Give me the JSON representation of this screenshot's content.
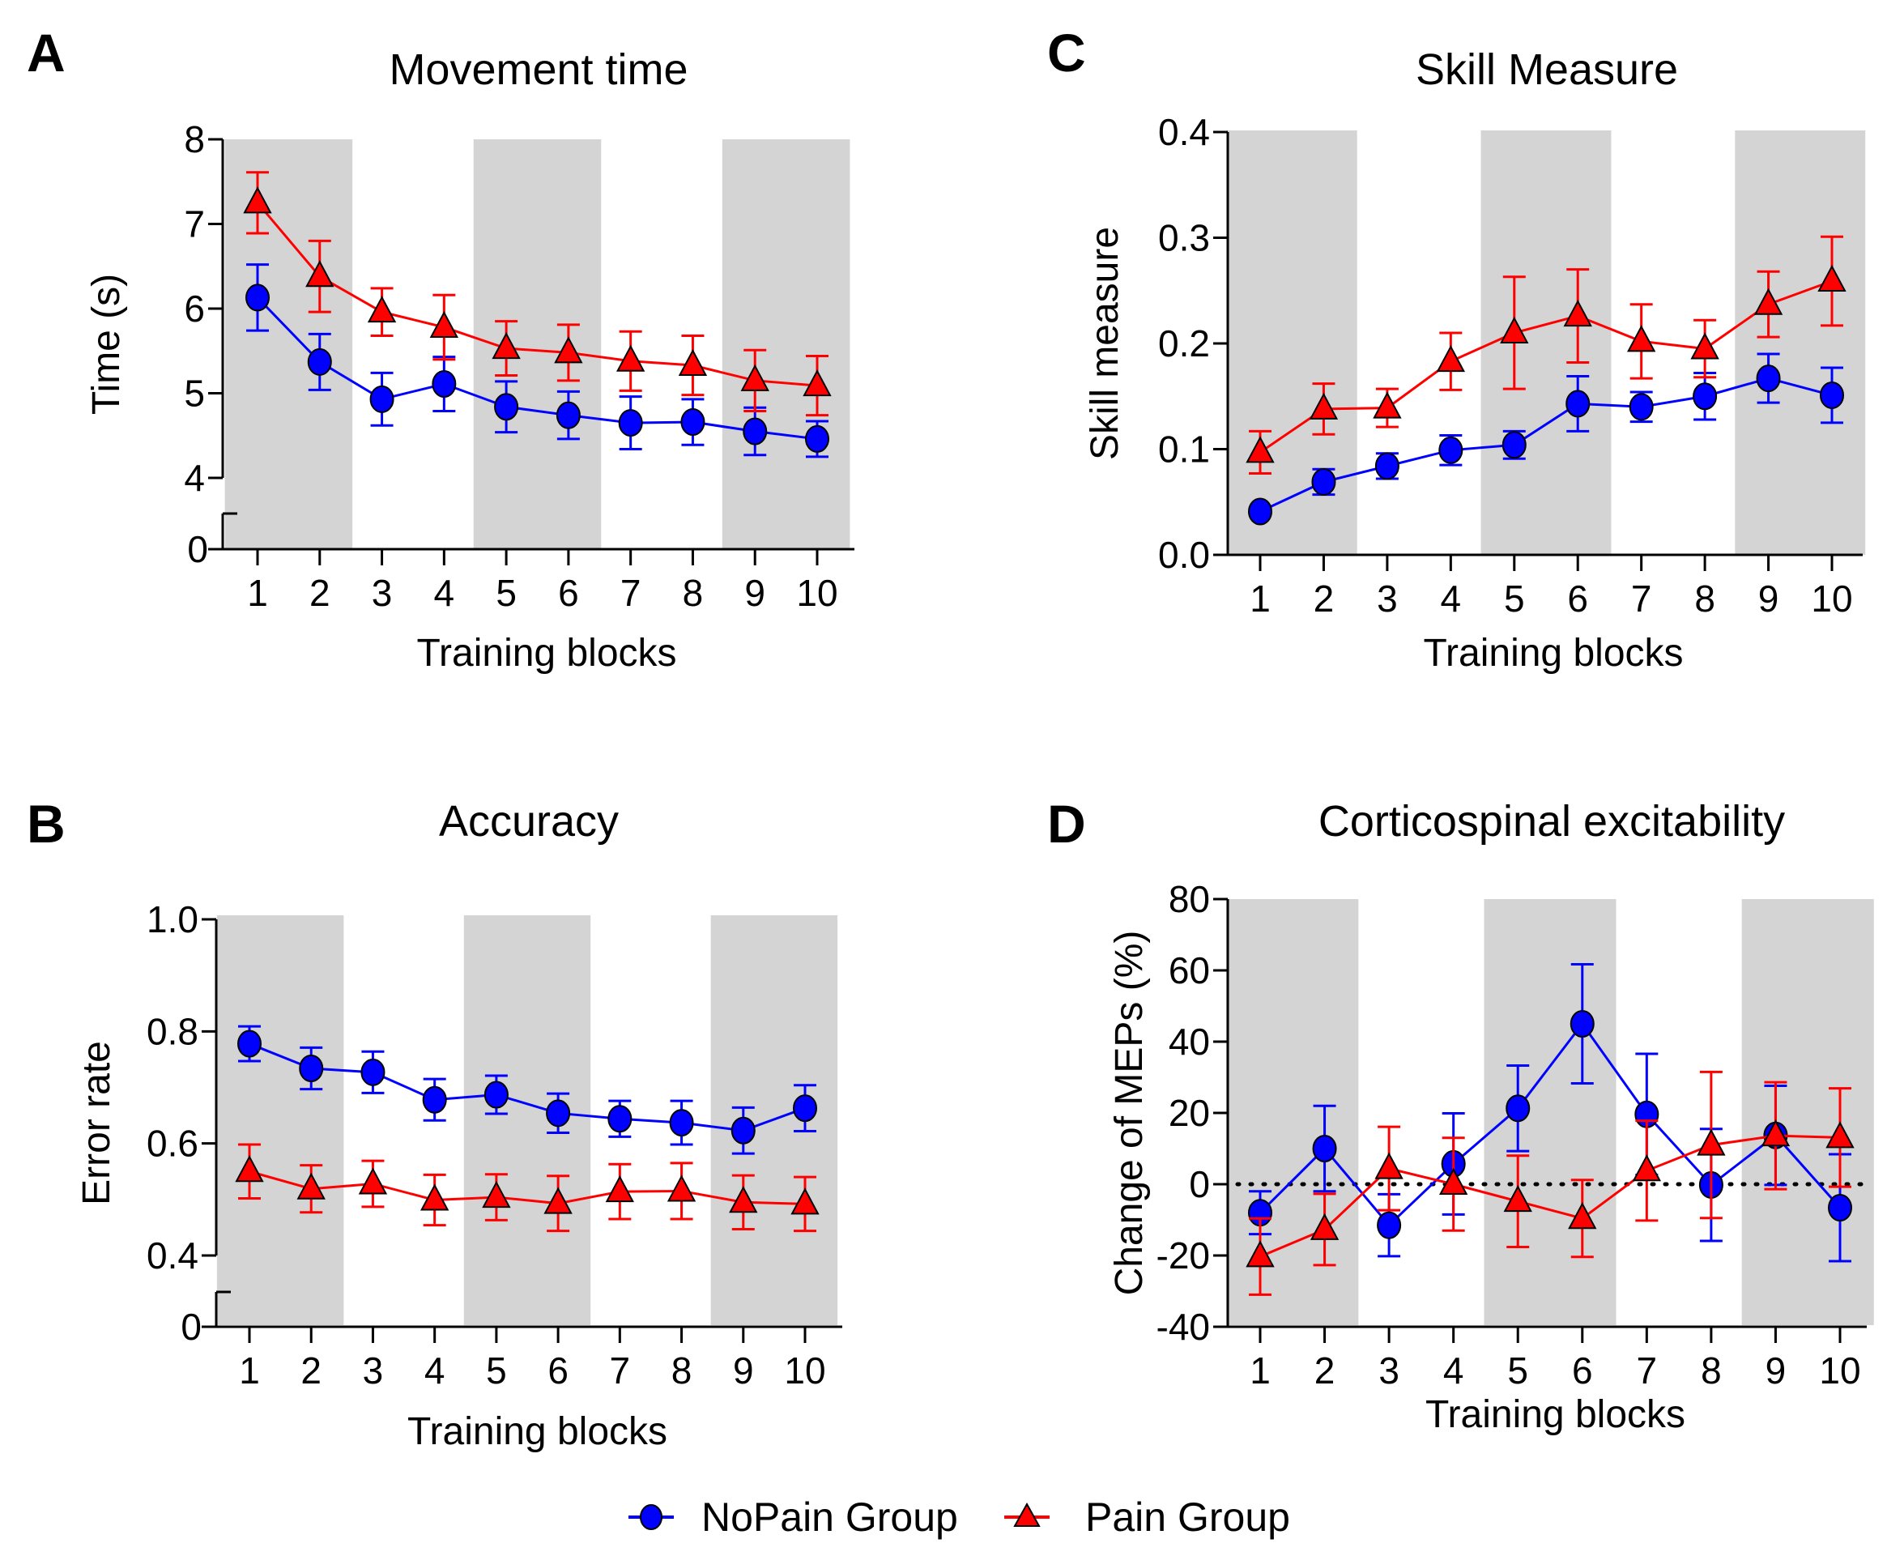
{
  "legend": {
    "items": [
      {
        "label": "NoPain Group",
        "color": "#0000ff",
        "marker": "circle"
      },
      {
        "label": "Pain Group",
        "color": "#ff0000",
        "marker": "triangle"
      }
    ]
  },
  "colors": {
    "nopain": "#0000ff",
    "pain": "#ff0000",
    "shade": "#d4d4d4"
  },
  "chart_data": [
    {
      "id": "A",
      "panel_letter": "A",
      "type": "line",
      "title": "Movement time",
      "xlabel": "Training blocks",
      "ylabel": "Time (s)",
      "x": [
        1,
        2,
        3,
        4,
        5,
        6,
        7,
        8,
        9,
        10
      ],
      "ylim": [
        4,
        8
      ],
      "axis_break": true,
      "yticks": [
        4,
        5,
        6,
        7,
        8
      ],
      "ytick_labels": [
        "4",
        "5",
        "6",
        "7",
        "8"
      ],
      "break_label": "0",
      "shaded_blocks": [
        [
          1,
          2
        ],
        [
          5,
          6
        ],
        [
          9,
          10
        ]
      ],
      "series": [
        {
          "name": "NoPain Group",
          "values": [
            6.13,
            5.37,
            4.93,
            5.11,
            4.84,
            4.74,
            4.65,
            4.66,
            4.55,
            4.46
          ],
          "errors": [
            0.39,
            0.33,
            0.31,
            0.32,
            0.3,
            0.28,
            0.31,
            0.27,
            0.28,
            0.21
          ]
        },
        {
          "name": "Pain Group",
          "values": [
            7.25,
            6.38,
            5.96,
            5.78,
            5.53,
            5.48,
            5.38,
            5.33,
            5.15,
            5.09
          ],
          "errors": [
            0.36,
            0.42,
            0.28,
            0.38,
            0.32,
            0.33,
            0.35,
            0.35,
            0.36,
            0.35
          ]
        }
      ]
    },
    {
      "id": "C",
      "panel_letter": "C",
      "type": "line",
      "title": "Skill Measure",
      "xlabel": "Training blocks",
      "ylabel": "Skill measure",
      "x": [
        1,
        2,
        3,
        4,
        5,
        6,
        7,
        8,
        9,
        10
      ],
      "ylim": [
        0.0,
        0.4
      ],
      "axis_break": false,
      "yticks": [
        0.0,
        0.1,
        0.2,
        0.3,
        0.4
      ],
      "ytick_labels": [
        "0.0",
        "0.1",
        "0.2",
        "0.3",
        "0.4"
      ],
      "shaded_blocks": [
        [
          1,
          2
        ],
        [
          5,
          6
        ],
        [
          9,
          10
        ]
      ],
      "series": [
        {
          "name": "NoPain Group",
          "values": [
            0.041,
            0.069,
            0.084,
            0.099,
            0.104,
            0.143,
            0.14,
            0.15,
            0.167,
            0.151
          ],
          "errors": [
            0.003,
            0.012,
            0.012,
            0.014,
            0.013,
            0.026,
            0.014,
            0.022,
            0.023,
            0.026
          ]
        },
        {
          "name": "Pain Group",
          "values": [
            0.097,
            0.138,
            0.139,
            0.183,
            0.21,
            0.226,
            0.202,
            0.195,
            0.237,
            0.259
          ],
          "errors": [
            0.02,
            0.024,
            0.018,
            0.027,
            0.053,
            0.044,
            0.035,
            0.027,
            0.031,
            0.042
          ]
        }
      ]
    },
    {
      "id": "B",
      "panel_letter": "B",
      "type": "line",
      "title": "Accuracy",
      "xlabel": "Training blocks",
      "ylabel": "Error rate",
      "x": [
        1,
        2,
        3,
        4,
        5,
        6,
        7,
        8,
        9,
        10
      ],
      "ylim": [
        0.4,
        1.0
      ],
      "axis_break": true,
      "yticks": [
        0.4,
        0.6,
        0.8,
        1.0
      ],
      "ytick_labels": [
        "0.4",
        "0.6",
        "0.8",
        "1.0"
      ],
      "break_label": "0",
      "shaded_blocks": [
        [
          1,
          2
        ],
        [
          5,
          6
        ],
        [
          9,
          10
        ]
      ],
      "series": [
        {
          "name": "NoPain Group",
          "values": [
            0.778,
            0.734,
            0.727,
            0.678,
            0.687,
            0.654,
            0.644,
            0.637,
            0.623,
            0.663
          ],
          "errors": [
            0.031,
            0.037,
            0.037,
            0.037,
            0.034,
            0.035,
            0.032,
            0.039,
            0.041,
            0.041
          ]
        },
        {
          "name": "Pain Group",
          "values": [
            0.55,
            0.519,
            0.528,
            0.499,
            0.504,
            0.493,
            0.514,
            0.515,
            0.495,
            0.492
          ],
          "errors": [
            0.048,
            0.042,
            0.041,
            0.045,
            0.041,
            0.049,
            0.049,
            0.05,
            0.048,
            0.048
          ]
        }
      ]
    },
    {
      "id": "D",
      "panel_letter": "D",
      "type": "line",
      "title": "Corticospinal excitability",
      "xlabel": "Training blocks",
      "ylabel": "Change of MEPs (%)",
      "x": [
        1,
        2,
        3,
        4,
        5,
        6,
        7,
        8,
        9,
        10
      ],
      "ylim": [
        -40,
        80
      ],
      "axis_break": false,
      "yticks": [
        -40,
        -20,
        0,
        20,
        40,
        60,
        80
      ],
      "ytick_labels": [
        "-40",
        "-20",
        "0",
        "20",
        "40",
        "60",
        "80"
      ],
      "reference_line": 0,
      "shaded_blocks": [
        [
          1,
          2
        ],
        [
          5,
          6
        ],
        [
          9,
          10
        ]
      ],
      "series": [
        {
          "name": "NoPain Group",
          "values": [
            -8.0,
            10.0,
            -11.5,
            5.7,
            21.3,
            45.0,
            19.6,
            -0.2,
            13.7,
            -6.6
          ],
          "errors": [
            6.0,
            12.0,
            8.7,
            14.2,
            12.0,
            16.7,
            17.0,
            15.7,
            13.9,
            15.0
          ]
        },
        {
          "name": "Pain Group",
          "values": [
            -20.3,
            -12.7,
            4.4,
            0.0,
            -4.8,
            -9.6,
            3.8,
            11.0,
            13.6,
            13.1
          ],
          "errors": [
            10.7,
            10.0,
            11.7,
            13.0,
            12.8,
            10.8,
            14.0,
            20.5,
            15.0,
            13.8
          ]
        }
      ]
    }
  ]
}
